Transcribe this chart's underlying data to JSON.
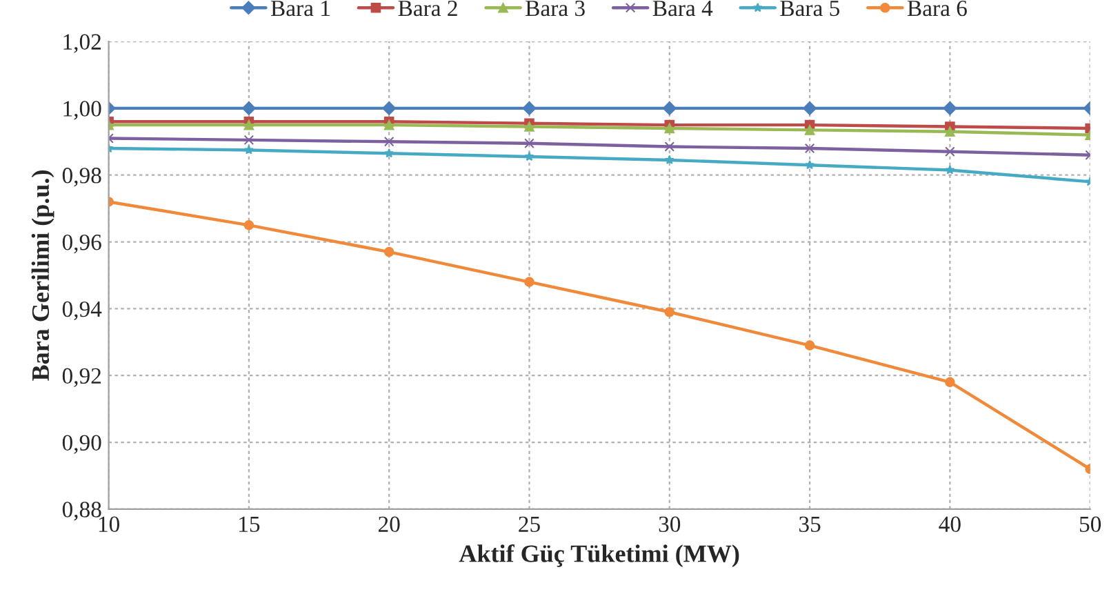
{
  "chart_data": {
    "type": "line",
    "xlabel": "Aktif Güç Tüketimi (MW)",
    "ylabel": "Bara Gerilimi (p.u.)",
    "categories": [
      "10",
      "15",
      "20",
      "25",
      "30",
      "35",
      "40",
      "50"
    ],
    "ylim": [
      0.88,
      1.02
    ],
    "yticks": [
      {
        "value": 0.88,
        "label": "0,88"
      },
      {
        "value": 0.9,
        "label": "0,90"
      },
      {
        "value": 0.92,
        "label": "0,92"
      },
      {
        "value": 0.94,
        "label": "0,94"
      },
      {
        "value": 0.96,
        "label": "0,96"
      },
      {
        "value": 0.98,
        "label": "0,98"
      },
      {
        "value": 1.0,
        "label": "1,00"
      },
      {
        "value": 1.02,
        "label": "1,02"
      }
    ],
    "grid": true,
    "legend": "top",
    "line_style": "solid",
    "series": [
      {
        "name": "Bara 1",
        "color": "#4a7ebb",
        "marker": "diamond",
        "values": [
          1.0,
          1.0,
          1.0,
          1.0,
          1.0,
          1.0,
          1.0,
          1.0
        ]
      },
      {
        "name": "Bara 2",
        "color": "#be4b48",
        "marker": "square",
        "values": [
          0.996,
          0.996,
          0.996,
          0.9955,
          0.995,
          0.995,
          0.9945,
          0.994
        ]
      },
      {
        "name": "Bara 3",
        "color": "#98b954",
        "marker": "triangle",
        "values": [
          0.995,
          0.995,
          0.995,
          0.9945,
          0.994,
          0.9935,
          0.993,
          0.992
        ]
      },
      {
        "name": "Bara 4",
        "color": "#7d60a0",
        "marker": "cross",
        "values": [
          0.991,
          0.9905,
          0.99,
          0.9895,
          0.9885,
          0.988,
          0.987,
          0.986
        ]
      },
      {
        "name": "Bara 5",
        "color": "#46aac5",
        "marker": "star",
        "values": [
          0.988,
          0.9875,
          0.9865,
          0.9855,
          0.9845,
          0.983,
          0.9815,
          0.978
        ]
      },
      {
        "name": "Bara 6",
        "color": "#f08a3a",
        "marker": "circle",
        "values": [
          0.972,
          0.965,
          0.957,
          0.948,
          0.939,
          0.929,
          0.918,
          0.892
        ]
      }
    ]
  }
}
